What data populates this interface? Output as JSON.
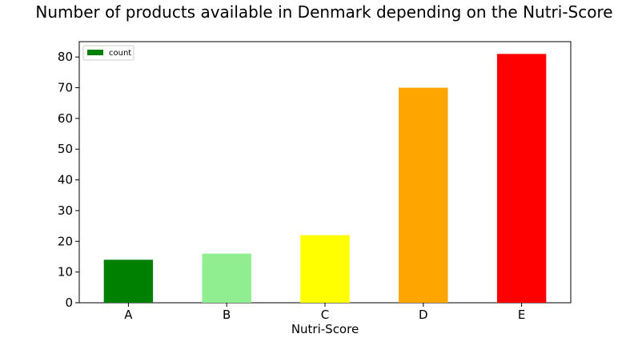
{
  "chart_data": {
    "type": "bar",
    "title": "Number of products available in Denmark depending on the Nutri-Score",
    "xlabel": "Nutri-Score",
    "ylabel": "",
    "categories": [
      "A",
      "B",
      "C",
      "D",
      "E"
    ],
    "series": [
      {
        "name": "count",
        "values": [
          14,
          16,
          22,
          70,
          81
        ],
        "colors": [
          "#008000",
          "#90ee90",
          "#ffff00",
          "#ffa500",
          "#ff0000"
        ]
      }
    ],
    "ylim": [
      0,
      85
    ],
    "yticks": [
      0,
      10,
      20,
      30,
      40,
      50,
      60,
      70,
      80
    ],
    "grid": false,
    "legend": {
      "position": "top-left",
      "swatch_color": "#008000"
    }
  }
}
